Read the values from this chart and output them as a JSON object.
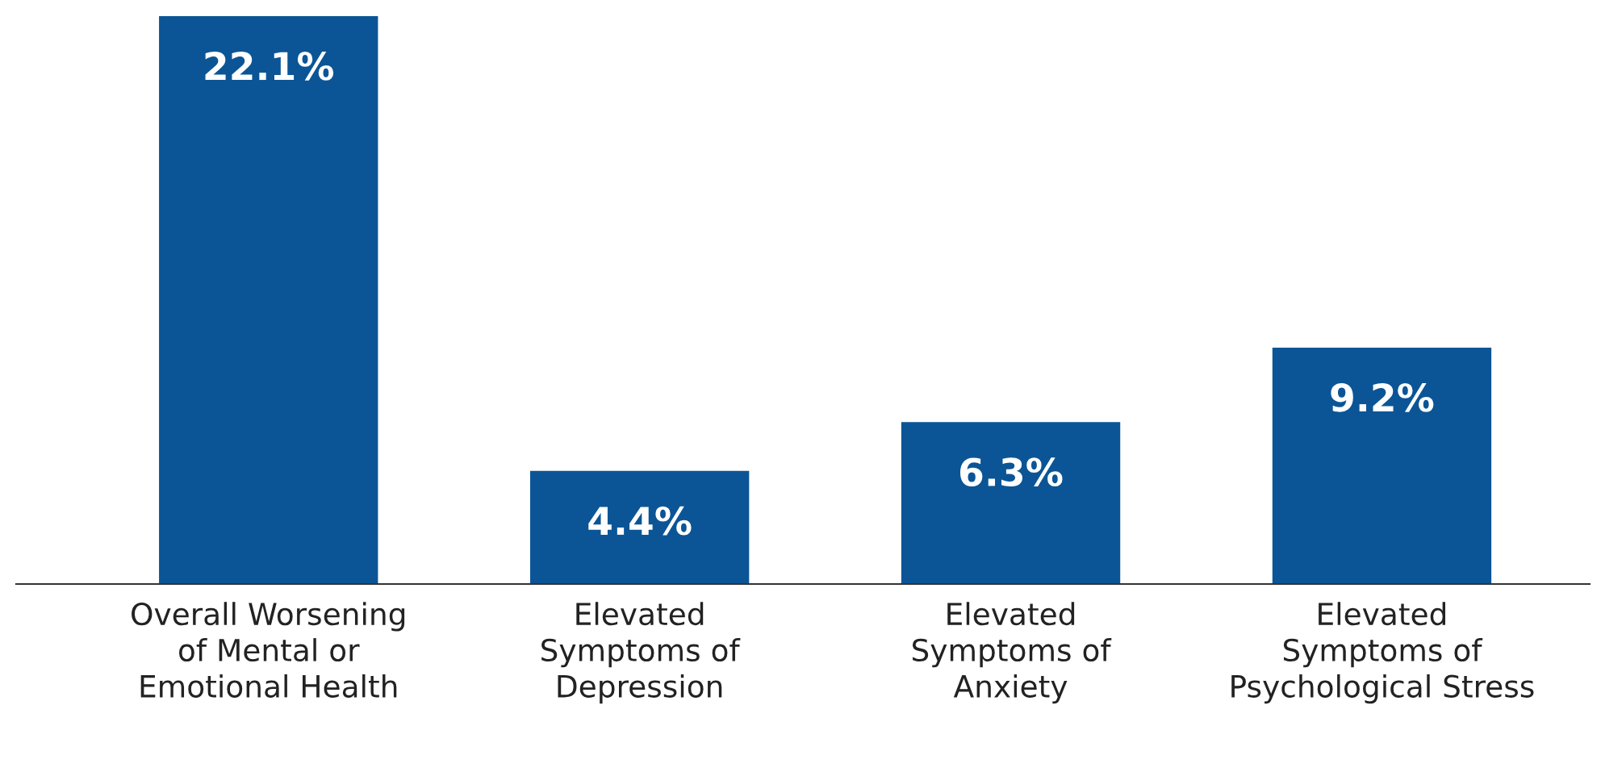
{
  "chart_data": {
    "type": "bar",
    "categories": [
      "Overall Worsening\nof Mental or\nEmotional Health",
      "Elevated\nSymptoms of\nDepression",
      "Elevated\nSymptoms of\nAnxiety",
      "Elevated\nSymptoms of\nPsychological Stress"
    ],
    "values": [
      22.1,
      4.4,
      6.3,
      9.2
    ],
    "value_labels": [
      "22.1%",
      "4.4%",
      "6.3%",
      "9.2%"
    ],
    "color": "#0b5596",
    "grid": false,
    "legend": false
  }
}
